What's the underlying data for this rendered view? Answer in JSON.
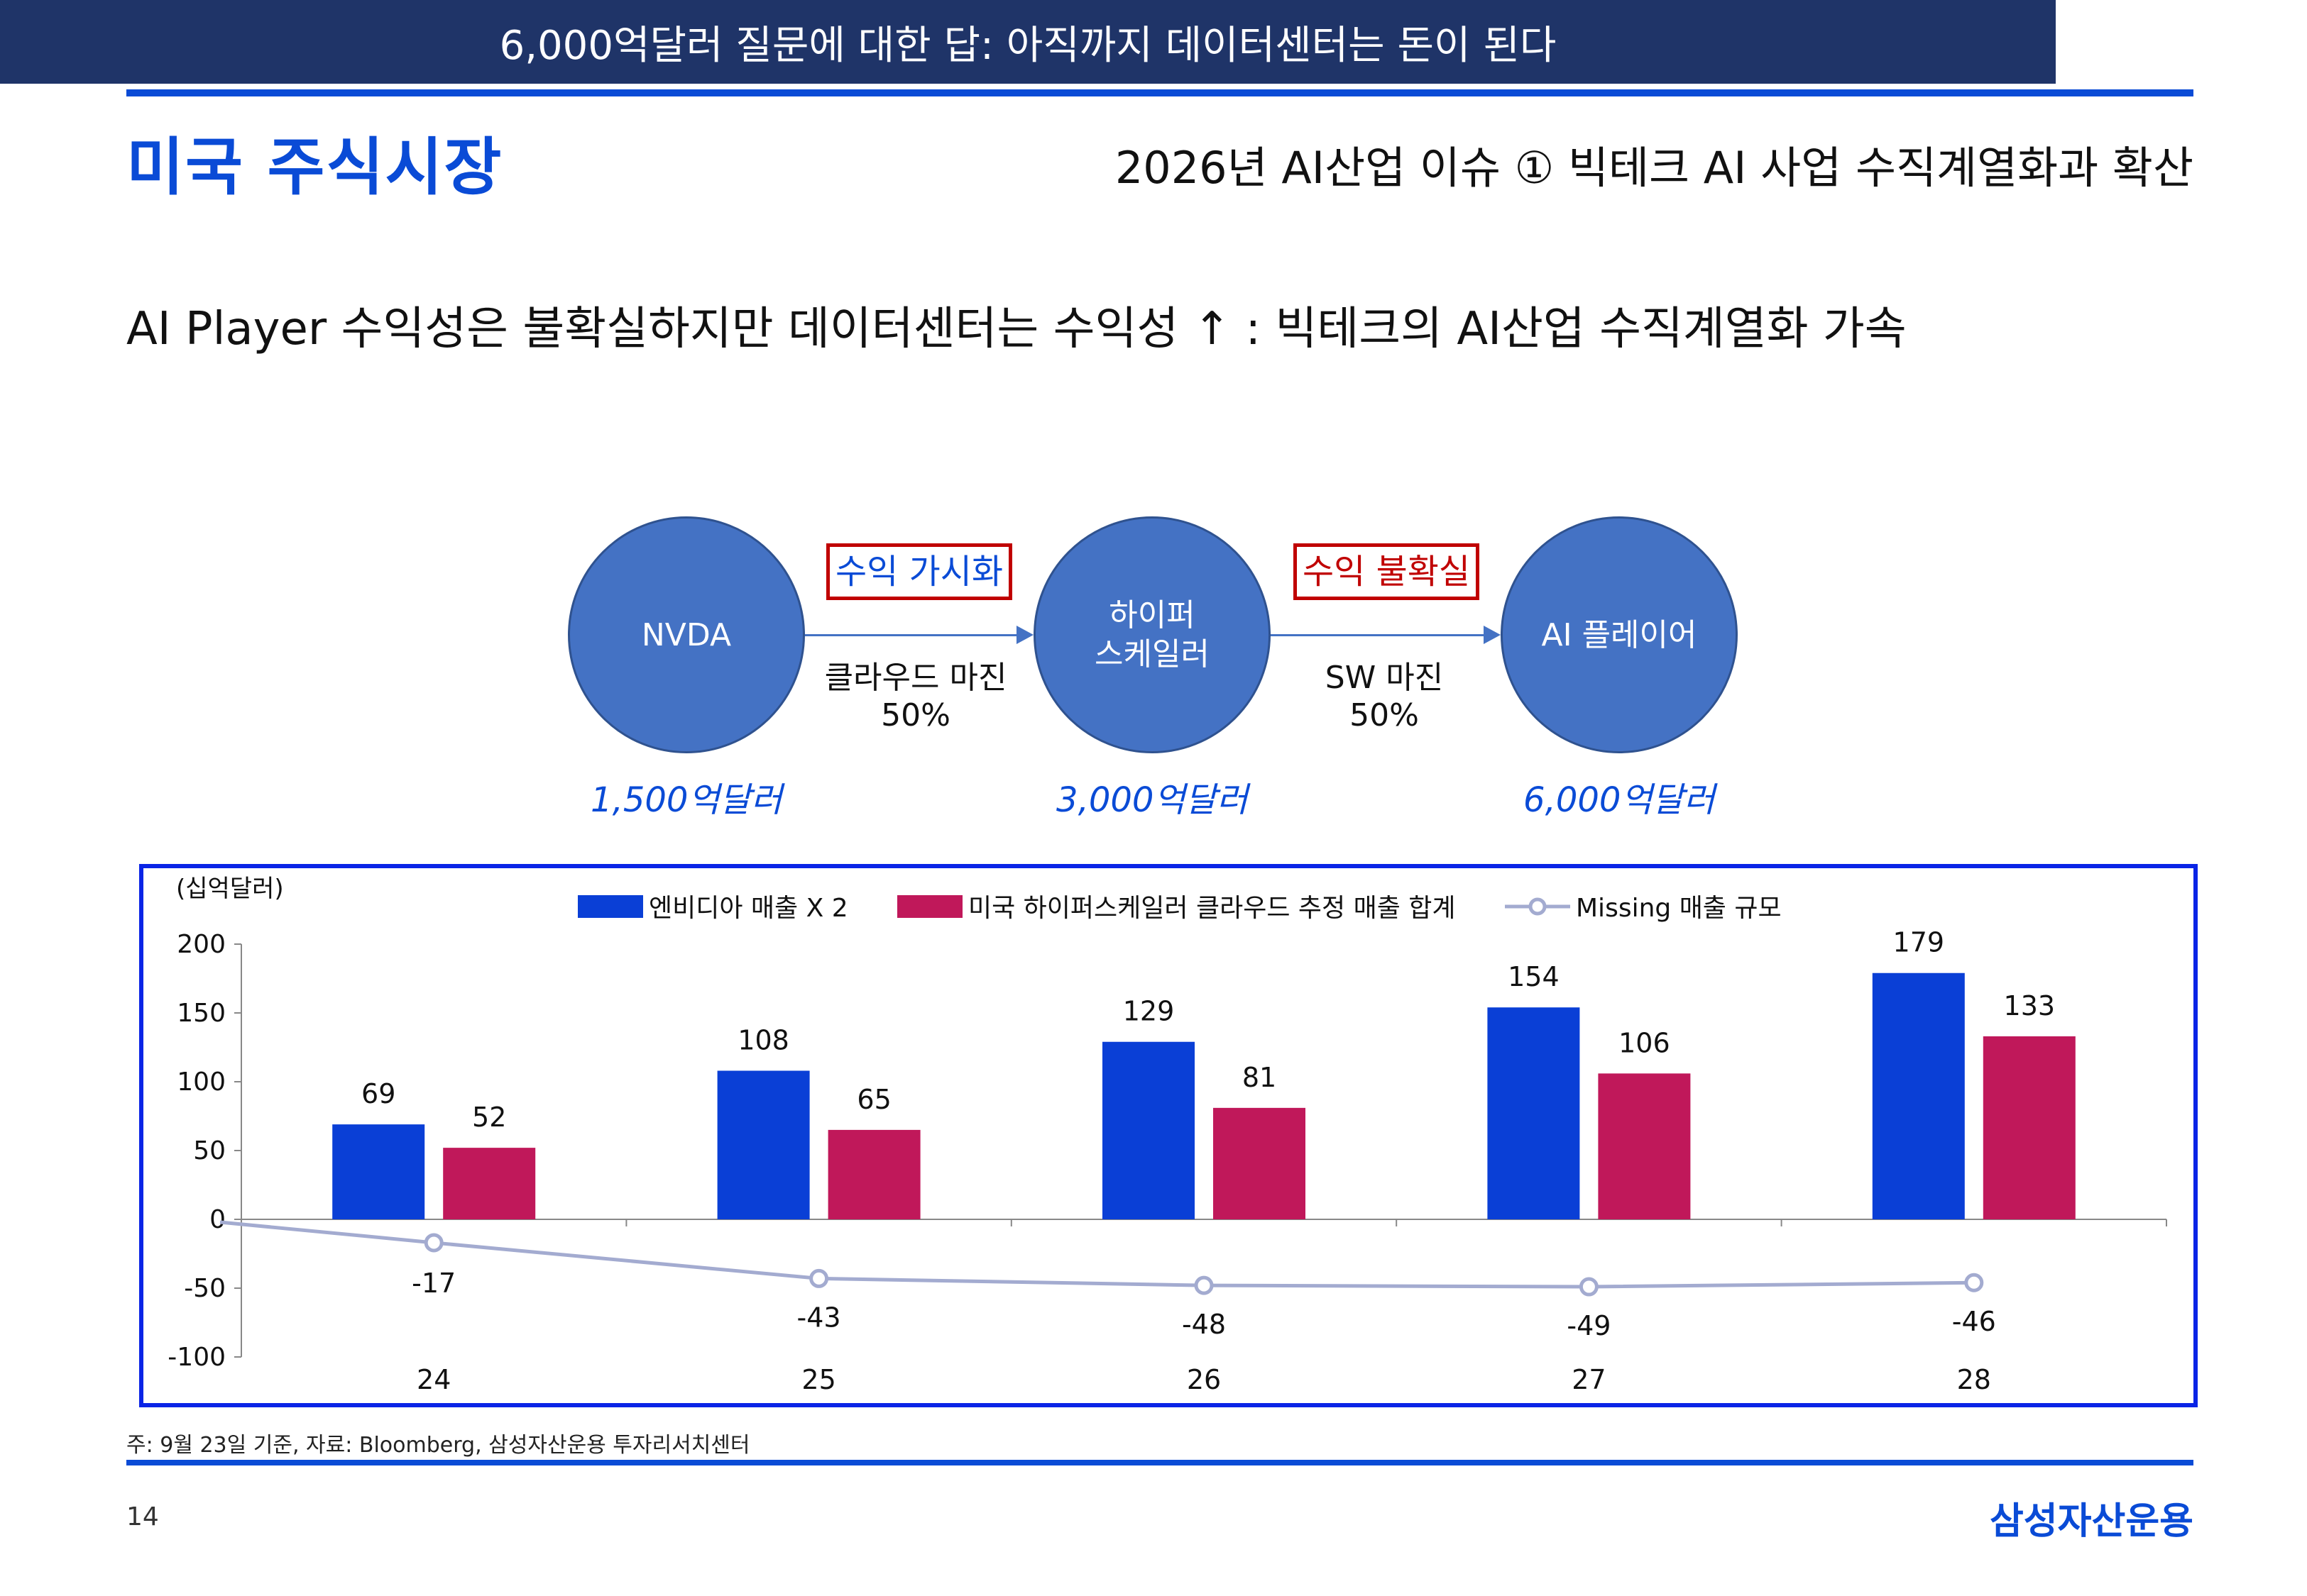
{
  "header": {
    "section_title": "미국 주식시장",
    "topic_title": "2026년 AI산업 이슈 ① 빅테크 AI 사업 수직계열화과 확산"
  },
  "headline": "AI Player 수익성은 불확실하지만 데이터센터는 수익성 ↑ :  빅테크의 AI산업 수직계열화 가속",
  "banner": "6,000억달러 질문에 대한 답: 아직까지 데이터센터는 돈이 된다",
  "flow": {
    "nodes": [
      {
        "label": "NVDA",
        "amount": "1,500억달러"
      },
      {
        "label": "하이퍼\n스케일러",
        "amount": "3,000억달러"
      },
      {
        "label": "AI 플레이어",
        "amount": "6,000억달러"
      }
    ],
    "links": [
      {
        "tag": "수익 가시화",
        "tag_color": "#0a4bd6",
        "margin_label": "클라우드 마진",
        "margin_value": "50%"
      },
      {
        "tag": "수익 불확실",
        "tag_color": "#c00000",
        "margin_label": "SW 마진",
        "margin_value": "50%"
      }
    ]
  },
  "chart_data": {
    "type": "bar",
    "unit_label": "(십억달러)",
    "categories": [
      "24",
      "25",
      "26",
      "27",
      "28"
    ],
    "ylim": [
      -100,
      200
    ],
    "yticks": [
      200,
      150,
      100,
      50,
      0,
      -50,
      -100
    ],
    "grid": false,
    "legend_position": "top",
    "series": [
      {
        "name": "엔비디아 매출 X 2",
        "kind": "bar",
        "color": "#0a3fd6",
        "values": [
          69,
          108,
          129,
          154,
          179
        ]
      },
      {
        "name": "미국 하이퍼스케일러 클라우드 추정 매출 합계",
        "kind": "bar",
        "color": "#c0185a",
        "values": [
          52,
          65,
          81,
          106,
          133
        ]
      },
      {
        "name": "Missing 매출 규모",
        "kind": "line",
        "color": "#a3abd0",
        "values": [
          -17,
          -43,
          -48,
          -49,
          -46
        ]
      }
    ]
  },
  "footnote": "주: 9월 23일 기준, 자료: Bloomberg, 삼성자산운용 투자리서치센터",
  "footer": {
    "page_number": "14",
    "brand": "삼성자산운용"
  }
}
